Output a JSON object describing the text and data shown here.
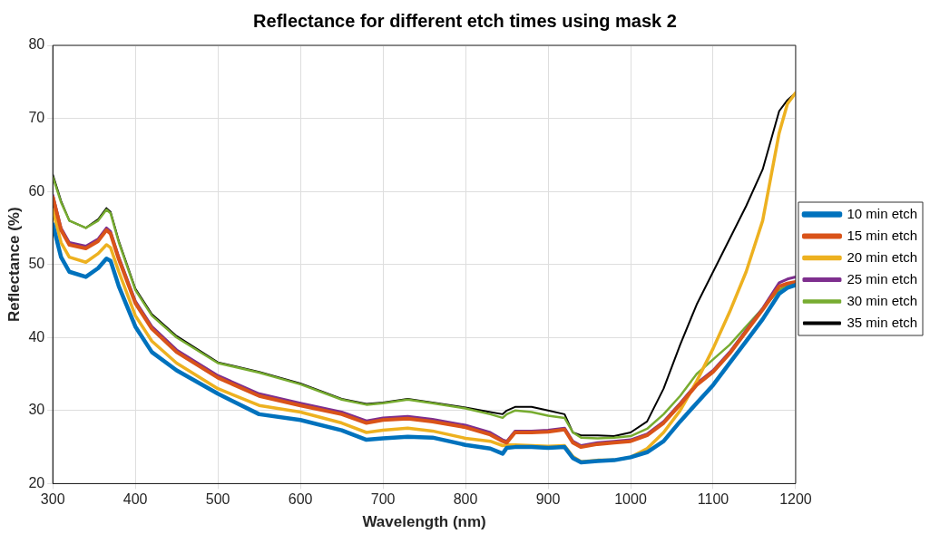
{
  "chart_data": {
    "type": "line",
    "title": "Reflectance for different etch times using mask 2",
    "xlabel": "Wavelength (nm)",
    "ylabel": "Reflectance (%)",
    "x": [
      300,
      310,
      320,
      340,
      355,
      365,
      370,
      380,
      400,
      420,
      450,
      500,
      550,
      600,
      650,
      680,
      700,
      730,
      760,
      800,
      830,
      845,
      850,
      860,
      880,
      900,
      920,
      930,
      940,
      960,
      980,
      1000,
      1020,
      1040,
      1060,
      1080,
      1100,
      1120,
      1140,
      1160,
      1180,
      1190,
      1200
    ],
    "xlim": [
      300,
      1200
    ],
    "xticks": [
      300,
      400,
      500,
      600,
      700,
      800,
      900,
      1000,
      1100,
      1200
    ],
    "ylim": [
      20,
      80
    ],
    "yticks": [
      20,
      30,
      40,
      50,
      60,
      70,
      80
    ],
    "grid": true,
    "legend": "right",
    "marker": "none",
    "line_style": "solid",
    "series": [
      {
        "name": "10 min etch",
        "color": "#0072bd",
        "values": [
          55.5,
          51,
          49,
          48.3,
          49.5,
          50.8,
          50.5,
          47,
          41.5,
          38,
          35.5,
          32.3,
          29.5,
          28.7,
          27.3,
          26,
          26.2,
          26.4,
          26.3,
          25.3,
          24.8,
          24.1,
          24.9,
          25,
          25,
          24.9,
          25,
          23.5,
          22.9,
          23.1,
          23.2,
          23.6,
          24.3,
          25.8,
          28.5,
          31,
          33.5,
          36.5,
          39.5,
          42.5,
          46,
          46.8,
          47.2
        ]
      },
      {
        "name": "15 min etch",
        "color": "#d95319",
        "values": [
          59.2,
          54.7,
          52.7,
          52.2,
          53.2,
          54.7,
          54.2,
          50.7,
          44.7,
          41.2,
          38,
          34.5,
          32,
          30.7,
          29.5,
          28.3,
          28.7,
          28.9,
          28.5,
          27.7,
          26.7,
          25.8,
          25.6,
          27,
          27,
          27.1,
          27.4,
          25.6,
          25,
          25.4,
          25.6,
          25.8,
          26.6,
          28.3,
          30.8,
          33.5,
          35.3,
          37.8,
          40.8,
          43.8,
          47,
          47.4,
          47.6
        ]
      },
      {
        "name": "20 min etch",
        "color": "#edb120",
        "values": [
          57.5,
          53,
          51,
          50.3,
          51.5,
          52.7,
          52.3,
          49,
          43,
          39.5,
          36.5,
          33,
          30.7,
          29.8,
          28.3,
          27,
          27.3,
          27.6,
          27.2,
          26.2,
          25.8,
          25.2,
          25.3,
          25.3,
          25.2,
          25.1,
          25.2,
          23.7,
          23,
          23.2,
          23.2,
          23.6,
          24.8,
          27,
          30,
          34,
          38.5,
          43.5,
          49,
          56,
          68,
          72,
          73.5
        ]
      },
      {
        "name": "25 min etch",
        "color": "#7e2f8e",
        "values": [
          59.5,
          55,
          53,
          52.5,
          53.5,
          55,
          54.5,
          51,
          45,
          41.5,
          38.3,
          34.8,
          32.3,
          31,
          29.8,
          28.6,
          29,
          29.2,
          28.8,
          28,
          27,
          26,
          25.8,
          27.2,
          27.2,
          27.3,
          27.6,
          25.8,
          25.2,
          25.6,
          25.8,
          26,
          26.8,
          28.5,
          31,
          33.7,
          35.5,
          38,
          41,
          44,
          47.5,
          48,
          48.3
        ]
      },
      {
        "name": "30 min etch",
        "color": "#77ac30",
        "values": [
          62,
          58.5,
          56,
          55,
          56,
          57.5,
          57,
          53,
          46.5,
          43,
          40,
          36.5,
          35.2,
          33.6,
          31.5,
          30.8,
          31,
          31.5,
          31,
          30.3,
          29.5,
          29,
          29.5,
          30,
          29.8,
          29.3,
          29,
          27,
          26.3,
          26.2,
          26.3,
          26.5,
          27.5,
          29.5,
          32,
          35,
          37,
          39,
          41.5,
          44,
          46.5,
          47.2,
          47.5
        ]
      },
      {
        "name": "35 min etch",
        "color": "#000000",
        "values": [
          62.3,
          58.7,
          56,
          55,
          56.2,
          57.7,
          57.2,
          53.2,
          46.7,
          43.2,
          40.2,
          36.6,
          35.3,
          33.7,
          31.6,
          30.9,
          31.1,
          31.6,
          31.1,
          30.4,
          29.8,
          29.5,
          30,
          30.5,
          30.5,
          30,
          29.5,
          27,
          26.6,
          26.6,
          26.5,
          27,
          28.5,
          33,
          39,
          44.5,
          49,
          53.5,
          58,
          63,
          71,
          72.5,
          73.5
        ]
      }
    ]
  }
}
